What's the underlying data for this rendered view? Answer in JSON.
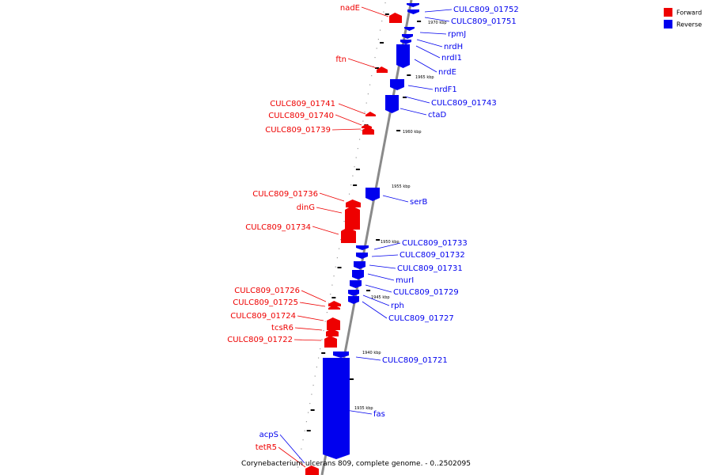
{
  "caption": "Corynebacterium ulcerans 809, complete genome. - 0..2502095",
  "legend": [
    {
      "label": "Forward",
      "color": "#ee0000"
    },
    {
      "label": "Reverse",
      "color": "#0000ee"
    }
  ],
  "colors": {
    "forward": "#ee0000",
    "reverse": "#0000ee",
    "backbone": "#8a8a8a"
  },
  "ticks": [
    "1970 kbp",
    "1965 kbp",
    "1960 kbp",
    "1955 kbp",
    "1950 kbp",
    "1945 kbp",
    "1940 kbp",
    "1935 kbp"
  ],
  "genes": [
    {
      "name": "CULC809_01752",
      "strand": "reverse"
    },
    {
      "name": "CULC809_01751",
      "strand": "reverse"
    },
    {
      "name": "nadE",
      "strand": "forward"
    },
    {
      "name": "rpmJ",
      "strand": "reverse"
    },
    {
      "name": "nrdH",
      "strand": "reverse"
    },
    {
      "name": "nrdI1",
      "strand": "reverse"
    },
    {
      "name": "ftn",
      "strand": "forward"
    },
    {
      "name": "nrdE",
      "strand": "reverse"
    },
    {
      "name": "nrdF1",
      "strand": "reverse"
    },
    {
      "name": "CULC809_01741",
      "strand": "forward"
    },
    {
      "name": "CULC809_01743",
      "strand": "reverse"
    },
    {
      "name": "CULC809_01740",
      "strand": "forward"
    },
    {
      "name": "ctaD",
      "strand": "reverse"
    },
    {
      "name": "CULC809_01739",
      "strand": "forward"
    },
    {
      "name": "CULC809_01736",
      "strand": "forward"
    },
    {
      "name": "serB",
      "strand": "reverse"
    },
    {
      "name": "dinG",
      "strand": "forward"
    },
    {
      "name": "CULC809_01734",
      "strand": "forward"
    },
    {
      "name": "CULC809_01733",
      "strand": "reverse"
    },
    {
      "name": "CULC809_01732",
      "strand": "reverse"
    },
    {
      "name": "CULC809_01731",
      "strand": "reverse"
    },
    {
      "name": "murI",
      "strand": "reverse"
    },
    {
      "name": "CULC809_01726",
      "strand": "forward"
    },
    {
      "name": "CULC809_01729",
      "strand": "reverse"
    },
    {
      "name": "CULC809_01725",
      "strand": "forward"
    },
    {
      "name": "rph",
      "strand": "reverse"
    },
    {
      "name": "CULC809_01724",
      "strand": "forward"
    },
    {
      "name": "CULC809_01727",
      "strand": "reverse"
    },
    {
      "name": "tcsR6",
      "strand": "forward"
    },
    {
      "name": "CULC809_01722",
      "strand": "forward"
    },
    {
      "name": "CULC809_01721",
      "strand": "reverse"
    },
    {
      "name": "fas",
      "strand": "reverse"
    },
    {
      "name": "acpS",
      "strand": "reverse"
    },
    {
      "name": "tetR5",
      "strand": "forward"
    }
  ]
}
